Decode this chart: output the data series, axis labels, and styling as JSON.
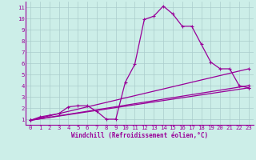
{
  "bg_color": "#cceee8",
  "line_color": "#990099",
  "grid_color": "#aacccc",
  "xlabel": "Windchill (Refroidissement éolien,°C)",
  "xlabel_color": "#990099",
  "tick_color": "#990099",
  "xlim": [
    -0.5,
    23.5
  ],
  "ylim": [
    0.5,
    11.5
  ],
  "yticks": [
    1,
    2,
    3,
    4,
    5,
    6,
    7,
    8,
    9,
    10,
    11
  ],
  "xticks": [
    0,
    1,
    2,
    3,
    4,
    5,
    6,
    7,
    8,
    9,
    10,
    11,
    12,
    13,
    14,
    15,
    16,
    17,
    18,
    19,
    20,
    21,
    22,
    23
  ],
  "series": [
    [
      0,
      0.9
    ],
    [
      1,
      1.2
    ],
    [
      2,
      1.35
    ],
    [
      3,
      1.5
    ],
    [
      4,
      2.1
    ],
    [
      5,
      2.2
    ],
    [
      6,
      2.2
    ],
    [
      7,
      1.7
    ],
    [
      8,
      1.0
    ],
    [
      9,
      1.0
    ],
    [
      10,
      4.3
    ],
    [
      11,
      5.9
    ],
    [
      12,
      9.9
    ],
    [
      13,
      10.2
    ],
    [
      14,
      11.1
    ],
    [
      15,
      10.4
    ],
    [
      16,
      9.3
    ],
    [
      17,
      9.3
    ],
    [
      18,
      7.7
    ],
    [
      19,
      6.1
    ],
    [
      20,
      5.5
    ],
    [
      21,
      5.5
    ],
    [
      22,
      4.0
    ],
    [
      23,
      3.8
    ]
  ],
  "line2": [
    [
      0,
      0.9
    ],
    [
      23,
      3.8
    ]
  ],
  "line3": [
    [
      0,
      0.9
    ],
    [
      23,
      4.0
    ]
  ],
  "line4": [
    [
      0,
      0.9
    ],
    [
      23,
      5.5
    ]
  ]
}
